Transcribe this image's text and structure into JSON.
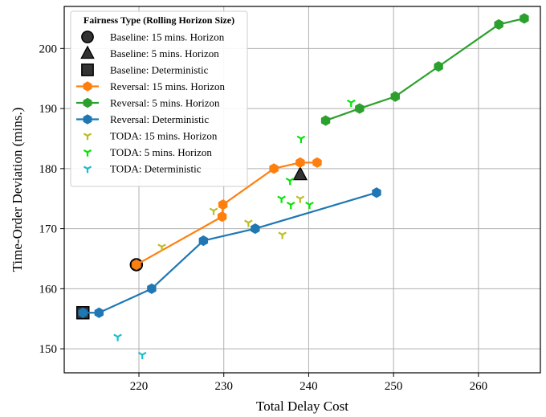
{
  "chart_data": {
    "type": "scatter",
    "xlabel": "Total Delay Cost",
    "ylabel": "Time-Order Deviation (mins.)",
    "xlim": [
      211.2,
      267.3
    ],
    "ylim": [
      146,
      207
    ],
    "xticks": [
      220,
      230,
      240,
      250,
      260
    ],
    "yticks": [
      150,
      160,
      170,
      180,
      190,
      200
    ],
    "grid": true,
    "legend": {
      "title": "Fairness Type (Rolling Horizon Size)",
      "placement": "top-left"
    },
    "series": [
      {
        "name": "Baseline: 15 mins. Horizon",
        "kind": "marker",
        "marker": "circle",
        "color": "#333333",
        "points": [
          [
            219.7,
            164
          ]
        ]
      },
      {
        "name": "Baseline: 5 mins. Horizon",
        "kind": "marker",
        "marker": "triangle",
        "color": "#333333",
        "points": [
          [
            239.0,
            179
          ]
        ]
      },
      {
        "name": "Baseline: Deterministic",
        "kind": "marker",
        "marker": "square",
        "color": "#333333",
        "points": [
          [
            213.4,
            156
          ]
        ]
      },
      {
        "name": "Reversal: 15 mins. Horizon",
        "kind": "line",
        "marker": "hexagon",
        "color": "#ff7f0e",
        "points": [
          [
            219.7,
            164
          ],
          [
            229.8,
            172
          ],
          [
            229.9,
            174
          ],
          [
            235.9,
            180
          ],
          [
            239.0,
            181
          ],
          [
            241.0,
            181
          ]
        ]
      },
      {
        "name": "Reversal: 5 mins. Horizon",
        "kind": "line",
        "marker": "hexagon",
        "color": "#2ca02c",
        "points": [
          [
            242.0,
            188
          ],
          [
            246.0,
            190
          ],
          [
            250.2,
            192
          ],
          [
            255.3,
            197
          ],
          [
            262.4,
            204
          ],
          [
            265.4,
            205
          ]
        ]
      },
      {
        "name": "Reversal: Deterministic",
        "kind": "line",
        "marker": "hexagon",
        "color": "#1f77b4",
        "points": [
          [
            213.4,
            156
          ],
          [
            215.3,
            156
          ],
          [
            221.5,
            160
          ],
          [
            227.6,
            168
          ],
          [
            233.7,
            170
          ],
          [
            248.0,
            176
          ]
        ]
      },
      {
        "name": "TODA: 15 mins. Horizon",
        "kind": "marker",
        "marker": "tri_down",
        "color": "#bcbd22",
        "points": [
          [
            222.7,
            167
          ],
          [
            228.8,
            173
          ],
          [
            232.9,
            171
          ],
          [
            236.9,
            169
          ],
          [
            239.0,
            175
          ]
        ]
      },
      {
        "name": "TODA: 5 mins. Horizon",
        "kind": "marker",
        "marker": "tri_down",
        "color": "#00e600",
        "points": [
          [
            236.8,
            175
          ],
          [
            237.8,
            178
          ],
          [
            237.9,
            174
          ],
          [
            239.1,
            185
          ],
          [
            240.1,
            174
          ],
          [
            245.0,
            191
          ]
        ]
      },
      {
        "name": "TODA: Deterministic",
        "kind": "marker",
        "marker": "tri_down",
        "color": "#17becf",
        "points": [
          [
            217.5,
            152
          ],
          [
            220.4,
            149
          ]
        ]
      }
    ]
  }
}
